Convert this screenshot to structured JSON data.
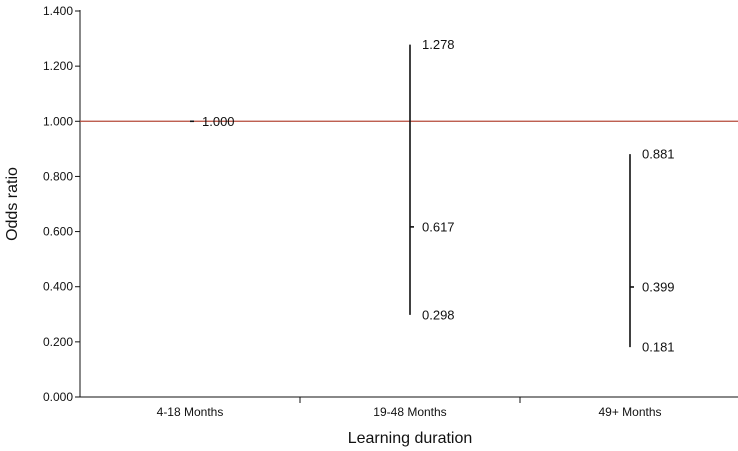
{
  "chart_data": {
    "type": "errorbar",
    "title": "",
    "xlabel": "Learning duration",
    "ylabel": "Odds ratio",
    "ylim": [
      0,
      1.4
    ],
    "yticks": [
      0.0,
      0.2,
      0.4,
      0.6,
      0.8,
      1.0,
      1.2,
      1.4
    ],
    "ytick_labels": [
      "0.000",
      "0.200",
      "0.400",
      "0.600",
      "0.800",
      "1.000",
      "1.200",
      "1.400"
    ],
    "categories": [
      "4-18 Months",
      "19-48 Months",
      "49+ Months"
    ],
    "points": [
      {
        "category": "4-18 Months",
        "estimate": 1.0,
        "lower": 1.0,
        "upper": 1.0,
        "estimate_label": "1.000",
        "lower_label": "",
        "upper_label": ""
      },
      {
        "category": "19-48 Months",
        "estimate": 0.617,
        "lower": 0.298,
        "upper": 1.278,
        "estimate_label": "0.617",
        "lower_label": "0.298",
        "upper_label": "1.278"
      },
      {
        "category": "49+ Months",
        "estimate": 0.399,
        "lower": 0.181,
        "upper": 0.881,
        "estimate_label": "0.399",
        "lower_label": "0.181",
        "upper_label": "0.881"
      }
    ],
    "reference_line": {
      "value": 1.0,
      "color": "#b5493a"
    },
    "colors": {
      "axis": "#111111",
      "interval": "#111111"
    },
    "grid": false,
    "legend": "none"
  }
}
